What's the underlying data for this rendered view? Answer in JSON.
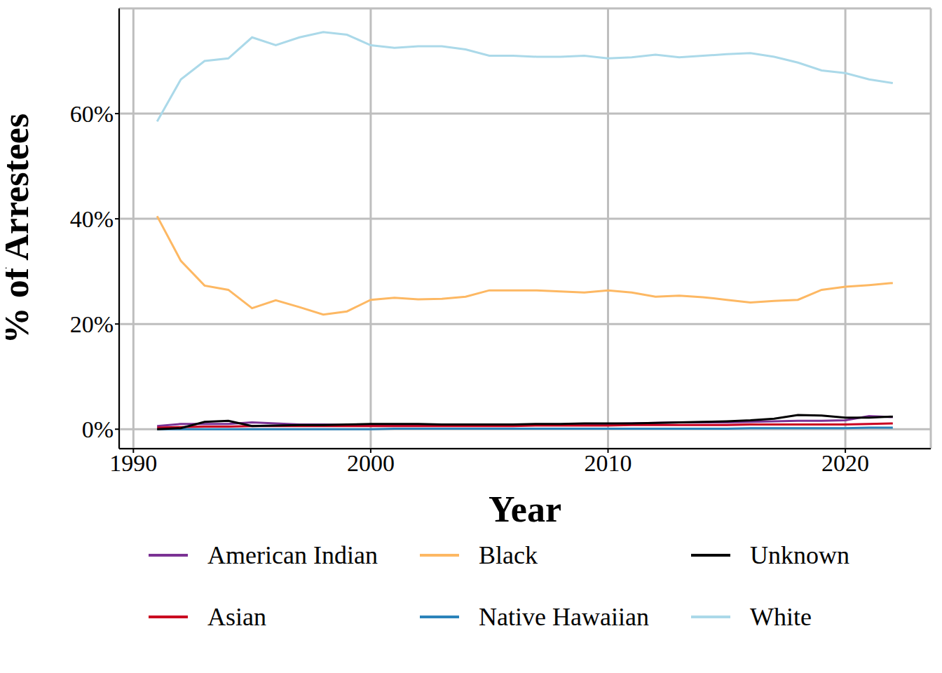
{
  "chart_data": {
    "type": "line",
    "x_label": "Year",
    "y_label": "% of Arrestees",
    "x": [
      1991,
      1992,
      1993,
      1994,
      1995,
      1996,
      1997,
      1998,
      1999,
      2000,
      2001,
      2002,
      2003,
      2004,
      2005,
      2006,
      2007,
      2008,
      2009,
      2010,
      2011,
      2012,
      2013,
      2014,
      2015,
      2016,
      2017,
      2018,
      2019,
      2020,
      2021,
      2022
    ],
    "xlim": [
      1989.4,
      2023.6
    ],
    "xticks": [
      1990,
      2000,
      2010,
      2020
    ],
    "ylim": [
      -3.7,
      80
    ],
    "yticks": [
      {
        "value": 0,
        "label": "0%"
      },
      {
        "value": 20,
        "label": "20%"
      },
      {
        "value": 40,
        "label": "40%"
      },
      {
        "value": 60,
        "label": "60%"
      }
    ],
    "grid": true,
    "legend": "bottom",
    "series": [
      {
        "name": "American Indian",
        "color": "#7b3294",
        "values": [
          0.6,
          1,
          1,
          1,
          1.3,
          1.1,
          0.9,
          0.9,
          0.8,
          0.8,
          0.8,
          0.8,
          0.8,
          0.8,
          0.8,
          0.8,
          0.9,
          0.9,
          1,
          1,
          1.1,
          1.2,
          1.3,
          1.3,
          1.3,
          1.4,
          1.5,
          1.6,
          1.6,
          1.7,
          2.5,
          2.3
        ]
      },
      {
        "name": "Asian",
        "color": "#ca0020",
        "values": [
          0.3,
          0.4,
          0.5,
          0.5,
          0.6,
          0.6,
          0.6,
          0.6,
          0.6,
          0.6,
          0.6,
          0.6,
          0.6,
          0.6,
          0.6,
          0.6,
          0.7,
          0.7,
          0.7,
          0.7,
          0.8,
          0.8,
          0.8,
          0.8,
          0.8,
          0.9,
          0.9,
          0.9,
          0.9,
          0.9,
          1,
          1.1
        ]
      },
      {
        "name": "Black",
        "color": "#fdb863",
        "values": [
          40.5,
          32,
          27.3,
          26.5,
          23,
          24.5,
          23.2,
          21.8,
          22.4,
          24.6,
          25,
          24.7,
          24.8,
          25.2,
          26.4,
          26.4,
          26.4,
          26.2,
          26,
          26.4,
          26,
          25.2,
          25.4,
          25.1,
          24.6,
          24.1,
          24.4,
          24.6,
          26.5,
          27.1,
          27.4,
          27.8
        ]
      },
      {
        "name": "Native Hawaiian",
        "color": "#2b83ba",
        "values": [
          0,
          0,
          0,
          0,
          0,
          0,
          0,
          0,
          0,
          0,
          0.1,
          0.1,
          0.1,
          0.1,
          0.1,
          0.1,
          0.1,
          0.1,
          0.1,
          0.1,
          0.1,
          0.1,
          0.1,
          0.1,
          0.1,
          0.2,
          0.2,
          0.2,
          0.2,
          0.2,
          0.3,
          0.3
        ]
      },
      {
        "name": "Unknown",
        "color": "#000000",
        "values": [
          0,
          0.2,
          1.4,
          1.6,
          0.6,
          0.7,
          0.8,
          0.8,
          0.9,
          1,
          1,
          1,
          0.9,
          0.9,
          0.9,
          0.9,
          1,
          1,
          1.1,
          1.1,
          1.1,
          1.2,
          1.3,
          1.4,
          1.5,
          1.7,
          2,
          2.7,
          2.6,
          2.2,
          2.2,
          2.4
        ]
      },
      {
        "name": "White",
        "color": "#abd9e9",
        "values": [
          58.5,
          66.5,
          70,
          70.5,
          74.5,
          73,
          74.5,
          75.5,
          75,
          73,
          72.5,
          72.8,
          72.8,
          72.2,
          71,
          71,
          70.8,
          70.8,
          71,
          70.5,
          70.7,
          71.2,
          70.7,
          71,
          71.3,
          71.5,
          70.8,
          69.7,
          68.2,
          67.7,
          66.5,
          65.8
        ]
      }
    ]
  }
}
